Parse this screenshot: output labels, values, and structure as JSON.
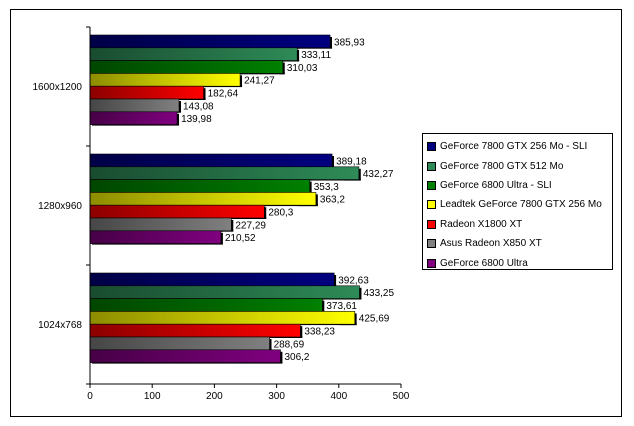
{
  "chart_data": {
    "type": "bar",
    "orientation": "horizontal",
    "categories": [
      "1600x1200",
      "1280x960",
      "1024x768"
    ],
    "xlim": [
      0,
      500
    ],
    "xticks": [
      "0",
      "100",
      "200",
      "300",
      "400",
      "500"
    ],
    "grid": false,
    "legend_position": "right",
    "series": [
      {
        "name": "GeForce 7800 GTX 256 Mo - SLI",
        "color": "#000080",
        "values": [
          385.93,
          389.18,
          392.63
        ],
        "labels": [
          "385,93",
          "389,18",
          "392,63"
        ]
      },
      {
        "name": "GeForce 7800 GTX 512 Mo",
        "color": "#2e8b57",
        "values": [
          333.11,
          432.27,
          433.25
        ],
        "labels": [
          "333,11",
          "432,27",
          "433,25"
        ]
      },
      {
        "name": "GeForce 6800 Ultra - SLI",
        "color": "#008000",
        "values": [
          310.03,
          353.3,
          373.61
        ],
        "labels": [
          "310,03",
          "353,3",
          "373,61"
        ]
      },
      {
        "name": "Leadtek GeForce 7800 GTX 256 Mo",
        "color": "#ffff00",
        "values": [
          241.27,
          363.2,
          425.69
        ],
        "labels": [
          "241,27",
          "363,2",
          "425,69"
        ]
      },
      {
        "name": "Radeon X1800 XT",
        "color": "#ff0000",
        "values": [
          182.64,
          280.3,
          338.23
        ],
        "labels": [
          "182,64",
          "280,3",
          "338,23"
        ]
      },
      {
        "name": "Asus Radeon X850 XT",
        "color": "#808080",
        "values": [
          143.08,
          227.29,
          288.69
        ],
        "labels": [
          "143,08",
          "227,29",
          "288,69"
        ]
      },
      {
        "name": "GeForce 6800 Ultra",
        "color": "#800080",
        "values": [
          139.98,
          210.52,
          306.2
        ],
        "labels": [
          "139,98",
          "210,52",
          "306,2"
        ]
      }
    ]
  }
}
